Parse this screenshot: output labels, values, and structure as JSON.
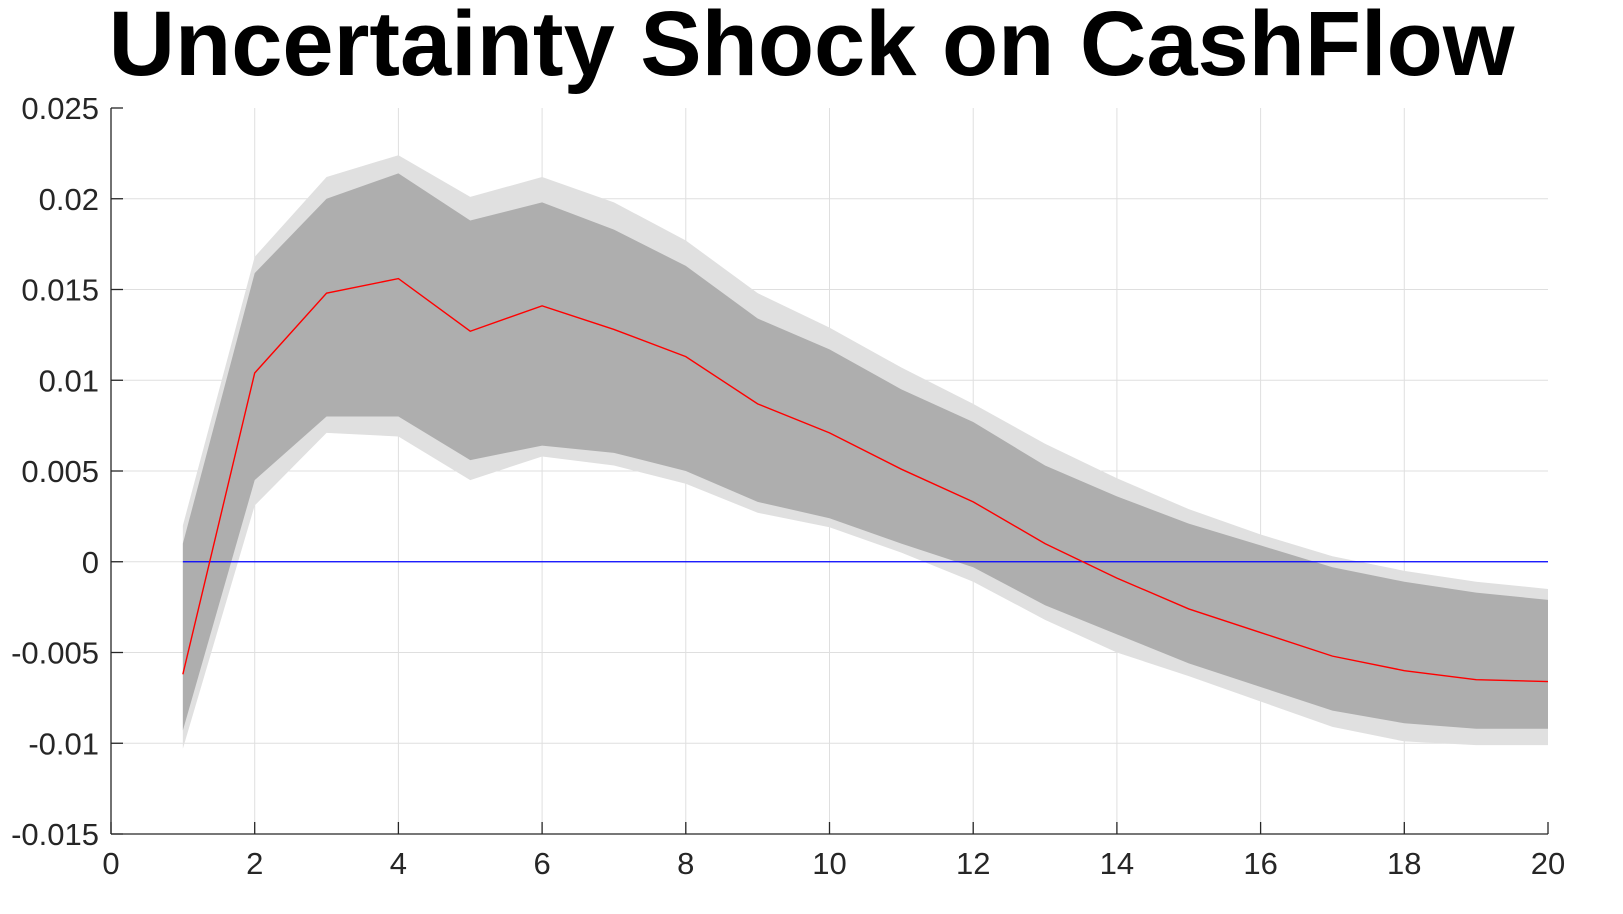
{
  "chart_data": {
    "type": "area",
    "title": "Uncertainty Shock on CashFlow",
    "xlabel": "",
    "ylabel": "",
    "xlim": [
      0,
      20
    ],
    "ylim": [
      -0.015,
      0.025
    ],
    "xticks": [
      0,
      2,
      4,
      6,
      8,
      10,
      12,
      14,
      16,
      18,
      20
    ],
    "xtick_labels": [
      "0",
      "2",
      "4",
      "6",
      "8",
      "10",
      "12",
      "14",
      "16",
      "18",
      "20"
    ],
    "yticks": [
      -0.015,
      -0.01,
      -0.005,
      0,
      0.005,
      0.01,
      0.015,
      0.02,
      0.025
    ],
    "ytick_labels": [
      "-0.015",
      "-0.01",
      "-0.005",
      "0",
      "0.005",
      "0.01",
      "0.015",
      "0.02",
      "0.025"
    ],
    "grid": true,
    "x": [
      1,
      2,
      3,
      4,
      5,
      6,
      7,
      8,
      9,
      10,
      11,
      12,
      13,
      14,
      15,
      16,
      17,
      18,
      19,
      20
    ],
    "series": [
      {
        "role": "median",
        "color": "#ff0000",
        "values": [
          -0.0062,
          0.0104,
          0.0148,
          0.0156,
          0.0127,
          0.0141,
          0.0128,
          0.0113,
          0.0087,
          0.0071,
          0.0051,
          0.0033,
          0.001,
          -0.0009,
          -0.0026,
          -0.0039,
          -0.0052,
          -0.006,
          -0.0065,
          -0.0066
        ]
      },
      {
        "role": "band-outer-upper",
        "color": "#e0e0e0",
        "values": [
          0.002,
          0.0168,
          0.0212,
          0.0224,
          0.0201,
          0.0212,
          0.0198,
          0.0177,
          0.0148,
          0.0129,
          0.0107,
          0.0087,
          0.0065,
          0.0046,
          0.0029,
          0.0015,
          0.0003,
          -0.0005,
          -0.0011,
          -0.0015
        ]
      },
      {
        "role": "band-inner-upper",
        "color": "#aeaeae",
        "values": [
          0.001,
          0.0159,
          0.02,
          0.0214,
          0.0188,
          0.0198,
          0.0183,
          0.0163,
          0.0134,
          0.0117,
          0.0095,
          0.0077,
          0.0053,
          0.0036,
          0.0021,
          0.0009,
          -0.0003,
          -0.0011,
          -0.0017,
          -0.0021
        ]
      },
      {
        "role": "band-inner-lower",
        "color": "#aeaeae",
        "values": [
          -0.0093,
          0.0045,
          0.008,
          0.008,
          0.0056,
          0.0064,
          0.006,
          0.005,
          0.0033,
          0.0024,
          0.001,
          -0.0003,
          -0.0024,
          -0.004,
          -0.0056,
          -0.0069,
          -0.0082,
          -0.0089,
          -0.0092,
          -0.0092
        ]
      },
      {
        "role": "band-outer-lower",
        "color": "#e0e0e0",
        "values": [
          -0.0103,
          0.0031,
          0.0071,
          0.0069,
          0.0045,
          0.0058,
          0.0053,
          0.0043,
          0.0027,
          0.0019,
          0.0005,
          -0.0011,
          -0.0032,
          -0.005,
          -0.0063,
          -0.0077,
          -0.0091,
          -0.0099,
          -0.0101,
          -0.0101
        ]
      },
      {
        "role": "zero-line",
        "color": "#0000ff",
        "values": [
          0,
          0,
          0,
          0,
          0,
          0,
          0,
          0,
          0,
          0,
          0,
          0,
          0,
          0,
          0,
          0,
          0,
          0,
          0,
          0
        ]
      }
    ]
  }
}
